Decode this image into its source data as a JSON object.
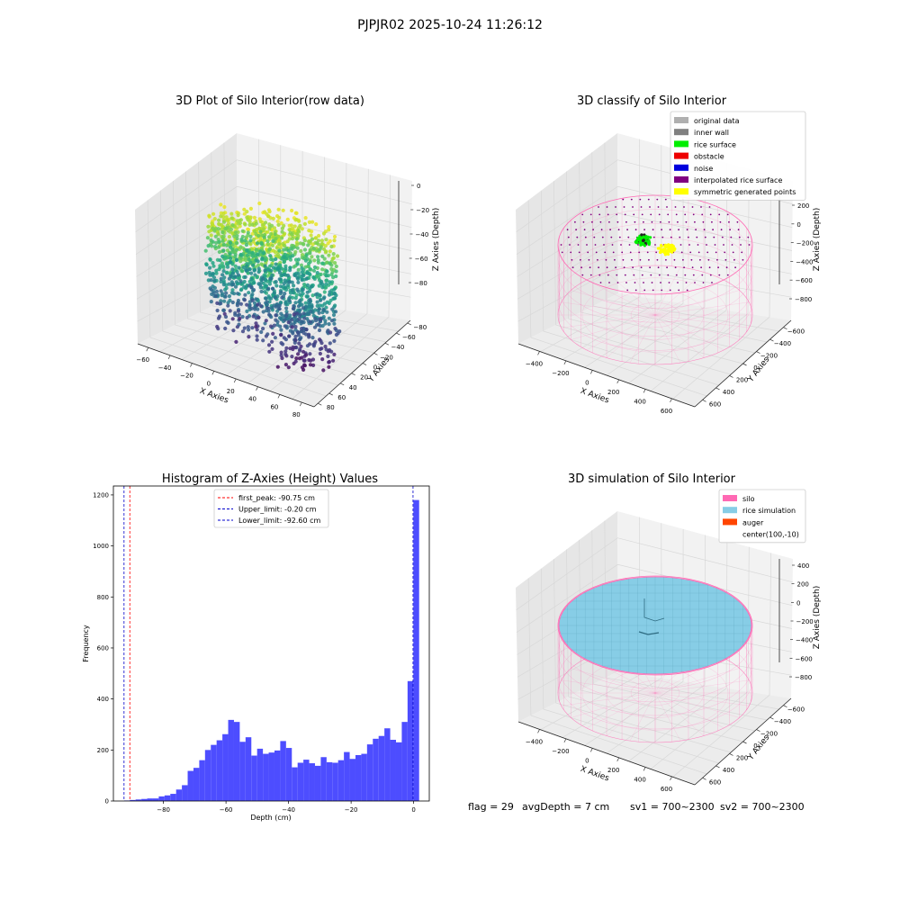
{
  "suptitle": "PJPJR02 2025-10-24 11:26:12",
  "chart_data": [
    {
      "type": "scatter",
      "title": "3D Plot of Silo Interior(row data)",
      "xlabel": "X Axies",
      "ylabel": "Y Axies",
      "zlabel": "Z Axies (Depth)",
      "x_ticks": [
        "−60",
        "−40",
        "−20",
        "0",
        "20",
        "40",
        "60",
        "80"
      ],
      "y_ticks": [
        "−80",
        "−60",
        "−40",
        "−20",
        "0",
        "20",
        "40",
        "60",
        "80"
      ],
      "z_ticks": [
        "0",
        "−20",
        "−40",
        "−60",
        "−80"
      ],
      "xlim": [
        -70,
        80
      ],
      "ylim": [
        -80,
        80
      ],
      "zlim": [
        -95,
        0
      ],
      "colormap": "viridis",
      "grid": true
    },
    {
      "type": "scatter",
      "title": "3D classify of Silo Interior",
      "xlabel": "X Axies",
      "ylabel": "Y Axies",
      "zlabel": "Z Axies (Depth)",
      "x_ticks": [
        "−400",
        "−200",
        "0",
        "200",
        "400",
        "600"
      ],
      "y_ticks": [
        "−600",
        "−400",
        "−200",
        "0",
        "200",
        "400",
        "600"
      ],
      "z_ticks": [
        "200",
        "0",
        "−200",
        "−400",
        "−600",
        "−800"
      ],
      "z_ticks_hidden": [
        "400"
      ],
      "grid": true,
      "legend_position": "top-right",
      "legend": [
        {
          "name": "original data",
          "color": "#b0b0b0"
        },
        {
          "name": "inner wall",
          "color": "#808080"
        },
        {
          "name": "rice surface",
          "color": "#00ee00"
        },
        {
          "name": "obstacle",
          "color": "#ee0000"
        },
        {
          "name": "noise",
          "color": "#0000dd"
        },
        {
          "name": "interpolated rice surface",
          "color": "#800080"
        },
        {
          "name": "symmetric generated points",
          "color": "#ffff00"
        }
      ]
    },
    {
      "type": "bar",
      "title": "Histogram of Z-Axies (Height) Values",
      "xlabel": "Depth (cm)",
      "ylabel": "Frequency",
      "x_ticks": [
        -80,
        -60,
        -40,
        -20,
        0
      ],
      "y_ticks": [
        0,
        200,
        400,
        600,
        800,
        1000,
        1200
      ],
      "xlim": [
        -96,
        5
      ],
      "ylim": [
        0,
        1235
      ],
      "bin_width": 1.85,
      "bin_start": -92.6,
      "values": [
        2,
        4,
        6,
        8,
        10,
        10,
        18,
        22,
        28,
        45,
        62,
        118,
        130,
        160,
        200,
        220,
        238,
        262,
        318,
        310,
        232,
        250,
        178,
        205,
        185,
        190,
        198,
        235,
        208,
        132,
        150,
        162,
        148,
        138,
        172,
        152,
        150,
        160,
        192,
        165,
        180,
        185,
        222,
        244,
        255,
        285,
        240,
        230,
        310,
        470,
        1180
      ],
      "bar_color": "#4d4dff",
      "vlines": [
        {
          "name": "first_peak: -90.75 cm",
          "x": -90.75,
          "color": "#ff0000"
        },
        {
          "name": "Upper_limit: -0.20 cm",
          "x": -0.2,
          "color": "#0000cc"
        },
        {
          "name": "Lower_limit: -92.60 cm",
          "x": -92.6,
          "color": "#0000cc"
        }
      ],
      "legend_position": "top-center"
    },
    {
      "type": "scatter",
      "title": "3D simulation of Silo Interior",
      "xlabel": "X Axies",
      "ylabel": "Y Axies",
      "zlabel": "Z Axies (Depth)",
      "x_ticks": [
        "−400",
        "−200",
        "0",
        "200",
        "400",
        "600"
      ],
      "y_ticks": [
        "−600",
        "−400",
        "−200",
        "0",
        "200",
        "400",
        "600"
      ],
      "z_ticks": [
        "400",
        "200",
        "0",
        "−200",
        "−400",
        "−600",
        "−800"
      ],
      "grid": true,
      "legend_position": "top-right",
      "legend": [
        {
          "name": "silo",
          "color": "#ff69b4"
        },
        {
          "name": "rice simulation",
          "color": "#87cde6"
        },
        {
          "name": "auger",
          "color": "#ff4500"
        },
        {
          "name": "center(100,-10)",
          "color": "#ffffff"
        }
      ]
    }
  ],
  "status": {
    "flag": "flag = 29",
    "avg_depth": "avgDepth = 7 cm",
    "sv1": "sv1 = 700~2300",
    "sv2": "sv2 = 700~2300"
  },
  "colors": {
    "silo_wire": "#ff69b4",
    "rice_surface": "#87cde6",
    "pane": "#f2f2f2",
    "pane_side": "#e6e6e6",
    "grid": "#d8d8d8"
  }
}
